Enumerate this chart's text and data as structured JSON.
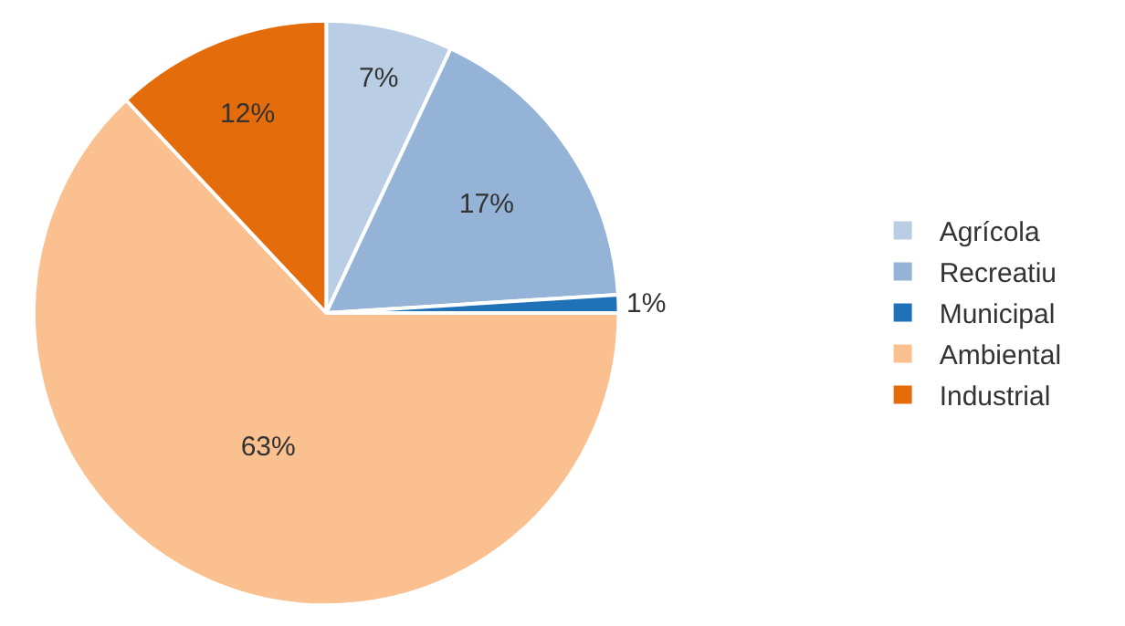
{
  "chart_data": {
    "type": "pie",
    "categories": [
      "Agrícola",
      "Recreatiu",
      "Municipal",
      "Ambiental",
      "Industrial"
    ],
    "values": [
      7,
      17,
      1,
      63,
      12
    ],
    "colors": [
      "#b9cde5",
      "#95b3d7",
      "#1f72b8",
      "#fac090",
      "#e46c0a"
    ],
    "value_labels": [
      "7%",
      "17%",
      "1%",
      "63%",
      "12%"
    ],
    "legend": "right"
  }
}
